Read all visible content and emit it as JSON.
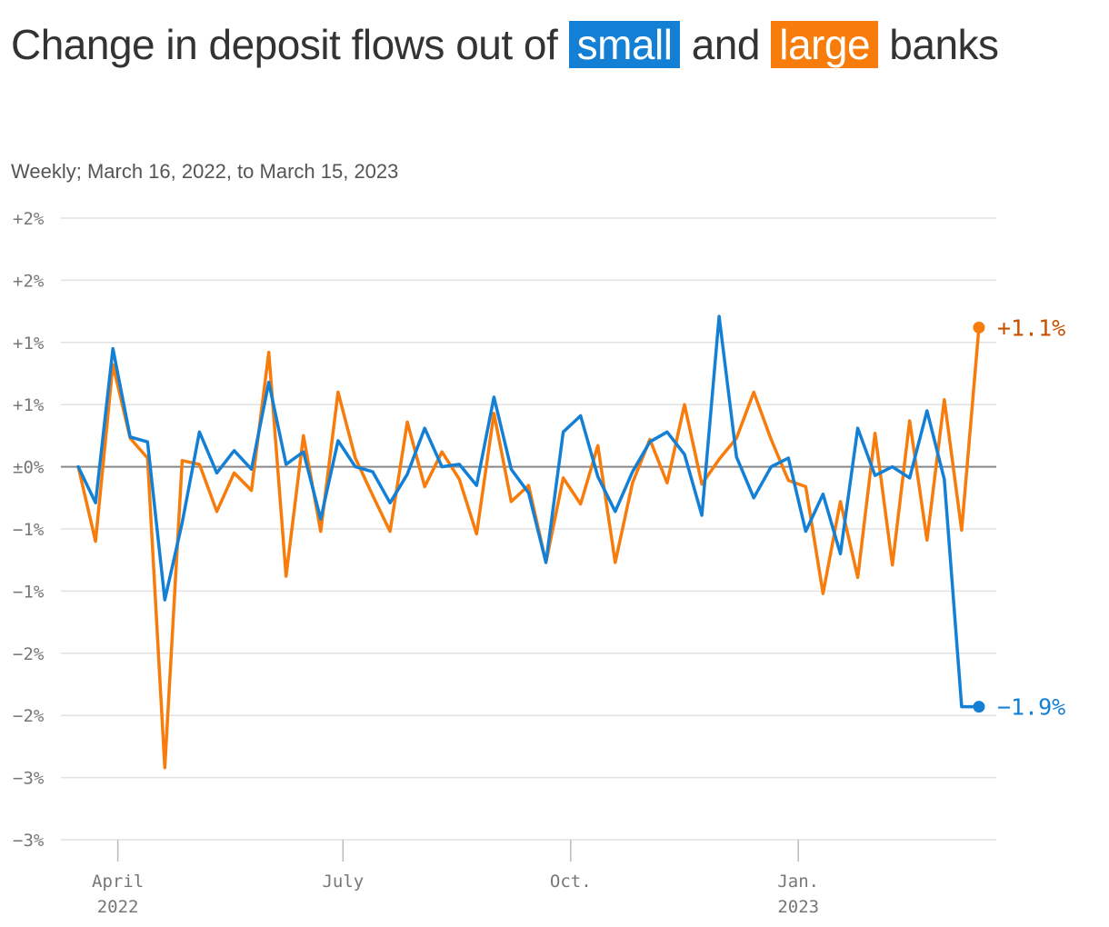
{
  "title": {
    "prefix": "Change in deposit flows out of ",
    "small": "small",
    "middle": " and ",
    "large": "large",
    "suffix": " banks"
  },
  "subtitle": "Weekly; March 16, 2022, to March 15, 2023",
  "colors": {
    "small": "#1380d6",
    "large": "#f77c0b",
    "large_label": "#c85200",
    "grid": "#e2e2e2",
    "zero": "#888888"
  },
  "chart_data": {
    "type": "line",
    "title": "Change in deposit flows out of small and large banks",
    "subtitle": "Weekly; March 16, 2022, to March 15, 2023",
    "ylim": [
      -3.0,
      2.0
    ],
    "y_ticks": [
      {
        "value": 2.0,
        "label": "+2%"
      },
      {
        "value": 1.5,
        "label": "+2%"
      },
      {
        "value": 1.0,
        "label": "+1%"
      },
      {
        "value": 0.5,
        "label": "+1%"
      },
      {
        "value": 0.0,
        "label": "±0%"
      },
      {
        "value": -0.5,
        "label": "−1%"
      },
      {
        "value": -1.0,
        "label": "−1%"
      },
      {
        "value": -1.5,
        "label": "−2%"
      },
      {
        "value": -2.0,
        "label": "−2%"
      },
      {
        "value": -2.5,
        "label": "−3%"
      },
      {
        "value": -3.0,
        "label": "−3%"
      }
    ],
    "x_ticks": [
      {
        "date": "2022-04-01",
        "label": "April",
        "sublabel": "2022"
      },
      {
        "date": "2022-07-01",
        "label": "July",
        "sublabel": ""
      },
      {
        "date": "2022-10-01",
        "label": "Oct.",
        "sublabel": ""
      },
      {
        "date": "2023-01-01",
        "label": "Jan.",
        "sublabel": "2023"
      }
    ],
    "x": [
      "2022-03-16",
      "2022-03-23",
      "2022-03-30",
      "2022-04-06",
      "2022-04-13",
      "2022-04-20",
      "2022-04-27",
      "2022-05-04",
      "2022-05-11",
      "2022-05-18",
      "2022-05-25",
      "2022-06-01",
      "2022-06-08",
      "2022-06-15",
      "2022-06-22",
      "2022-06-29",
      "2022-07-06",
      "2022-07-13",
      "2022-07-20",
      "2022-07-27",
      "2022-08-03",
      "2022-08-10",
      "2022-08-17",
      "2022-08-24",
      "2022-08-31",
      "2022-09-07",
      "2022-09-14",
      "2022-09-21",
      "2022-09-28",
      "2022-10-05",
      "2022-10-12",
      "2022-10-19",
      "2022-10-26",
      "2022-11-02",
      "2022-11-09",
      "2022-11-16",
      "2022-11-23",
      "2022-11-30",
      "2022-12-07",
      "2022-12-14",
      "2022-12-21",
      "2022-12-28",
      "2023-01-04",
      "2023-01-11",
      "2023-01-18",
      "2023-01-25",
      "2023-02-01",
      "2023-02-08",
      "2023-02-15",
      "2023-02-22",
      "2023-03-01",
      "2023-03-08",
      "2023-03-15"
    ],
    "series": [
      {
        "name": "small",
        "color": "#1380d6",
        "end_label": "−1.9%",
        "values": [
          0.0,
          -0.29,
          0.95,
          0.24,
          0.2,
          -1.07,
          -0.45,
          0.28,
          -0.05,
          0.13,
          -0.02,
          0.68,
          0.02,
          0.12,
          -0.42,
          0.21,
          0.0,
          -0.04,
          -0.29,
          -0.06,
          0.31,
          0.0,
          0.02,
          -0.15,
          0.56,
          -0.02,
          -0.21,
          -0.77,
          0.28,
          0.41,
          -0.08,
          -0.36,
          -0.04,
          0.2,
          0.28,
          0.1,
          -0.39,
          1.21,
          0.08,
          -0.25,
          0.0,
          0.07,
          -0.52,
          -0.22,
          -0.7,
          0.31,
          -0.07,
          0.0,
          -0.09,
          0.45,
          -0.1,
          -1.93,
          -1.93
        ]
      },
      {
        "name": "large",
        "color": "#f77c0b",
        "end_label": "+1.1%",
        "values": [
          0.0,
          -0.6,
          0.82,
          0.23,
          0.07,
          -2.42,
          0.05,
          0.02,
          -0.36,
          -0.05,
          -0.19,
          0.92,
          -0.88,
          0.25,
          -0.52,
          0.6,
          0.07,
          -0.23,
          -0.52,
          0.36,
          -0.16,
          0.12,
          -0.1,
          -0.54,
          0.43,
          -0.28,
          -0.15,
          -0.77,
          -0.09,
          -0.3,
          0.17,
          -0.77,
          -0.13,
          0.22,
          -0.13,
          0.5,
          -0.14,
          0.06,
          0.23,
          0.6,
          0.22,
          -0.11,
          -0.16,
          -1.02,
          -0.28,
          -0.89,
          0.27,
          -0.79,
          0.37,
          -0.59,
          0.54,
          -0.51,
          1.12
        ]
      }
    ],
    "grid": true,
    "legend": "title"
  }
}
